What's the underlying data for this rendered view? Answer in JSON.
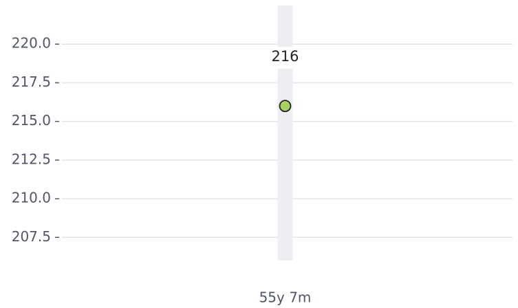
{
  "chart_data": {
    "type": "scatter",
    "categories": [
      "55y 7m"
    ],
    "values": [
      216
    ],
    "color": "#a8d160",
    "ylim": [
      206,
      222.5
    ],
    "yticks": [
      {
        "value": 207.5,
        "label": "207.5"
      },
      {
        "value": 210,
        "label": "210.0"
      },
      212.5,
      {
        "value": 215,
        "label": "215.0"
      },
      217.5,
      {
        "value": 220,
        "label": "220.0"
      }
    ],
    "grid": true
  }
}
